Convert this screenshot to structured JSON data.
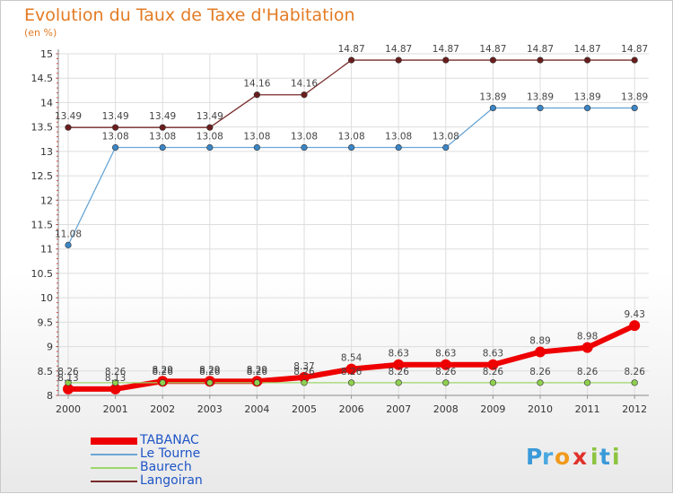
{
  "title": "Evolution du Taux de Taxe d'Habitation",
  "unit": "(en %)",
  "brand": {
    "letters": [
      {
        "char": "P",
        "color": "#3a9ad9"
      },
      {
        "char": "r",
        "color": "#4aa8e0"
      },
      {
        "char": "o",
        "color": "#f09a1e"
      },
      {
        "char": "x",
        "color": "#e0322a"
      },
      {
        "char": "i",
        "color": "#8cc43f"
      },
      {
        "char": "t",
        "color": "#3a9ad9"
      },
      {
        "char": "i",
        "color": "#8cc43f"
      }
    ]
  },
  "chart_data": {
    "type": "line",
    "title": "Evolution du Taux de Taxe d'Habitation",
    "ylabel": "(en %)",
    "xlabel": "",
    "x": [
      "2000",
      "2001",
      "2002",
      "2003",
      "2004",
      "2005",
      "2006",
      "2007",
      "2008",
      "2009",
      "2010",
      "2011",
      "2012"
    ],
    "ylim": [
      8,
      15
    ],
    "yticks": [
      8,
      8.5,
      9,
      9.5,
      10,
      10.5,
      11,
      11.5,
      12,
      12.5,
      13,
      13.5,
      14,
      14.5,
      15
    ],
    "ytick_labels": [
      "8",
      "8.5",
      "9",
      "9.5",
      "10",
      "10.5",
      "11",
      "11.5",
      "12",
      "12.5",
      "13",
      "13.5",
      "14",
      "14.5",
      "15"
    ],
    "grid": true,
    "legend": "bottom-left",
    "series": [
      {
        "name": "TABANAC",
        "color": "#ee0000",
        "values": [
          8.13,
          8.13,
          8.29,
          8.29,
          8.29,
          8.37,
          8.54,
          8.63,
          8.63,
          8.63,
          8.89,
          8.98,
          9.43
        ],
        "labels": [
          "8.13",
          "8.13",
          "8.29",
          "8.29",
          "8.29",
          "8.37",
          "8.54",
          "8.63",
          "8.63",
          "8.63",
          "8.89",
          "8.98",
          "9.43"
        ]
      },
      {
        "name": "Le Tourne",
        "color": "#5599cc",
        "values": [
          11.08,
          13.08,
          13.08,
          13.08,
          13.08,
          13.08,
          13.08,
          13.08,
          13.08,
          13.89,
          13.89,
          13.89,
          13.89
        ],
        "labels": [
          "11.08",
          "13.08",
          "13.08",
          "13.08",
          "13.08",
          "13.08",
          "13.08",
          "13.08",
          "13.08",
          "13.89",
          "13.89",
          "13.89",
          "13.89"
        ]
      },
      {
        "name": "Baurech",
        "color": "#88cc55",
        "values": [
          8.26,
          8.26,
          8.26,
          8.26,
          8.26,
          8.26,
          8.26,
          8.26,
          8.26,
          8.26,
          8.26,
          8.26,
          8.26
        ],
        "labels": [
          "8.26",
          "8.26",
          "8.26",
          "8.26",
          "8.26",
          "8.26",
          "8.26",
          "8.26",
          "8.26",
          "8.26",
          "8.26",
          "8.26",
          "8.26"
        ]
      },
      {
        "name": "Langoiran",
        "color": "#7a2a2a",
        "values": [
          13.49,
          13.49,
          13.49,
          13.49,
          14.16,
          14.16,
          14.87,
          14.87,
          14.87,
          14.87,
          14.87,
          14.87,
          14.87
        ],
        "labels": [
          "13.49",
          "13.49",
          "13.49",
          "13.49",
          "14.16",
          "14.16",
          "14.87",
          "14.87",
          "14.87",
          "14.87",
          "14.87",
          "14.87",
          "14.87"
        ]
      }
    ]
  }
}
